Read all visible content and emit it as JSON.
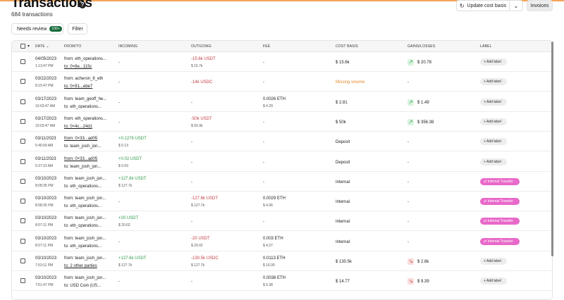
{
  "header": {
    "title": "Transactions",
    "subtitle": "684 transactions",
    "help_icon_glyph": "?",
    "update_cost_basis_label": "Update cost basis",
    "update_icon_glyph": "↻",
    "dropdown_glyph": "⌄",
    "invoices_label": "Invoices"
  },
  "filters": {
    "needs_review_label": "Needs review",
    "needs_review_count": "100+",
    "filter_label": "Filter"
  },
  "table": {
    "headers": {
      "date": "DATE",
      "sort_glyph": "⌄",
      "select_glyph": "▾",
      "from_to": "FROM/TO",
      "incoming": "INCOMING",
      "outgoing": "OUTGOING",
      "fee": "FEE",
      "cost_basis": "COST BASIS",
      "gains_losses": "GAINS/LOSSES",
      "label": "LABEL"
    },
    "rows": [
      {
        "date": "04/05/2023",
        "time": "1:13:47 PM",
        "from": "from: eth_operations...",
        "to": "to: 0×8e...115c",
        "to_link": true,
        "in_main": "-",
        "in_sub": "",
        "in_color": "",
        "out_main": "-15.6k USDT",
        "out_sub": "$ 15.7k",
        "out_color": "red",
        "fee_main": "-",
        "fee_sub": "",
        "cost": "$ 15.6k",
        "cost_color": "",
        "gain": "$ 20.78",
        "gain_dir": "up",
        "gain_glyph": "↗",
        "label": "+ Add label",
        "label_type": "add"
      },
      {
        "date": "03/22/2023",
        "time": "8:15:47 PM",
        "from": "from: acheron_8_eth",
        "to": "to: 0×91...ebe7",
        "to_link": true,
        "in_main": "-",
        "in_sub": "",
        "in_color": "",
        "out_main": "-14k USDC",
        "out_sub": "",
        "out_color": "red",
        "fee_main": "-",
        "fee_sub": "",
        "cost": "Missing volume",
        "cost_color": "orange",
        "gain": "-",
        "gain_dir": "",
        "gain_glyph": "",
        "label": "+ Add label",
        "label_type": "add"
      },
      {
        "date": "03/17/2023",
        "time": "10:03:47 AM",
        "from": "from: team_geoff_he...",
        "to": "to: eth_operations...",
        "to_link": false,
        "in_main": "-",
        "in_sub": "",
        "in_color": "",
        "out_main": "-",
        "out_sub": "",
        "out_color": "",
        "fee_main": "0.0026 ETH",
        "fee_sub": "$ 4.29",
        "cost": "$ 2.81",
        "cost_color": "",
        "gain": "$ 1.49",
        "gain_dir": "up",
        "gain_glyph": "↗",
        "label": "+ Add label",
        "label_type": "add"
      },
      {
        "date": "03/17/2023",
        "time": "10:03:47 AM",
        "from": "from: eth_operations...",
        "to": "to: 0×4c...24d1",
        "to_link": true,
        "in_main": "-",
        "in_sub": "",
        "in_color": "",
        "out_main": "-50k USDT",
        "out_sub": "$ 50.3k",
        "out_color": "red",
        "fee_main": "-",
        "fee_sub": "",
        "cost": "$ 50k",
        "cost_color": "",
        "gain": "$ 356.38",
        "gain_dir": "up",
        "gain_glyph": "↗",
        "label": "+ Add label",
        "label_type": "add"
      },
      {
        "date": "03/11/2023",
        "time": "5:46:59 AM",
        "from": "from: 0×33...ad05",
        "to": "to: team_josh_jon...",
        "to_link": false,
        "from_link": true,
        "in_main": "+0.1276 USDT",
        "in_sub": "$ 0.13",
        "in_color": "green",
        "out_main": "-",
        "out_sub": "",
        "out_color": "",
        "fee_main": "-",
        "fee_sub": "",
        "cost": "Deposit",
        "cost_color": "",
        "gain": "-",
        "gain_dir": "",
        "gain_glyph": "",
        "label": "+ Add label",
        "label_type": "add"
      },
      {
        "date": "03/11/2023",
        "time": "5:37:23 AM",
        "from": "from: 0×33...ad05",
        "to": "to: team_josh_jon...",
        "to_link": false,
        "from_link": true,
        "in_main": "+0.02 USDT",
        "in_sub": "$ 0.03",
        "in_color": "green",
        "out_main": "-",
        "out_sub": "",
        "out_color": "",
        "fee_main": "-",
        "fee_sub": "",
        "cost": "Deposit",
        "cost_color": "",
        "gain": "-",
        "gain_dir": "",
        "gain_glyph": "",
        "label": "+ Add label",
        "label_type": "add"
      },
      {
        "date": "03/10/2023",
        "time": "8:08:35 PM",
        "from": "from: team_josh_jon...",
        "to": "to: eth_operations...",
        "to_link": false,
        "in_main": "+127.6k USDT",
        "in_sub": "$ 127.7k",
        "in_color": "green",
        "out_main": "-",
        "out_sub": "",
        "out_color": "",
        "fee_main": "-",
        "fee_sub": "",
        "cost": "Internal",
        "cost_color": "",
        "gain": "-",
        "gain_dir": "",
        "gain_glyph": "",
        "label": "⇄ Internal Transfer",
        "label_type": "transfer"
      },
      {
        "date": "03/10/2023",
        "time": "8:08:35 PM",
        "from": "from: team_josh_jon...",
        "to": "to: eth_operations...",
        "to_link": false,
        "in_main": "-",
        "in_sub": "",
        "in_color": "",
        "out_main": "-127.6k USDT",
        "out_sub": "$ 127.7k",
        "out_color": "red",
        "fee_main": "0.0029 ETH",
        "fee_sub": "$ 4.06",
        "cost": "Internal",
        "cost_color": "",
        "gain": "-",
        "gain_dir": "",
        "gain_glyph": "",
        "label": "⇄ Internal Transfer",
        "label_type": "transfer"
      },
      {
        "date": "03/10/2023",
        "time": "8:07:11 PM",
        "from": "from: team_josh_jon...",
        "to": "to: eth_operations...",
        "to_link": false,
        "in_main": "+20 USDT",
        "in_sub": "$ 20.02",
        "in_color": "green",
        "out_main": "-",
        "out_sub": "",
        "out_color": "",
        "fee_main": "-",
        "fee_sub": "",
        "cost": "Internal",
        "cost_color": "",
        "gain": "-",
        "gain_dir": "",
        "gain_glyph": "",
        "label": "⇄ Internal Transfer",
        "label_type": "transfer"
      },
      {
        "date": "03/10/2023",
        "time": "8:07:11 PM",
        "from": "from: team_josh_jon...",
        "to": "to: eth_operations...",
        "to_link": false,
        "in_main": "-",
        "in_sub": "",
        "in_color": "",
        "out_main": "-20 USDT",
        "out_sub": "$ 20.02",
        "out_color": "red",
        "fee_main": "0.003 ETH",
        "fee_sub": "$ 4.27",
        "cost": "Internal",
        "cost_color": "",
        "gain": "-",
        "gain_dir": "",
        "gain_glyph": "",
        "label": "⇄ Internal Transfer",
        "label_type": "transfer"
      },
      {
        "date": "03/10/2023",
        "time": "7:53:11 PM",
        "from": "from: team_josh_jon...",
        "to": "to: 2 other parties",
        "to_link": true,
        "in_main": "+127.6k USDT",
        "in_sub": "$ 127.7k",
        "in_color": "green",
        "out_main": "-130.5k USDC",
        "out_sub": "$ 127.7k",
        "out_color": "red",
        "fee_main": "0.0113 ETH",
        "fee_sub": "$ 16.09",
        "cost": "$ 130.5k",
        "cost_color": "",
        "gain": "$ 2.8k",
        "gain_dir": "down",
        "gain_glyph": "↘",
        "label": "+ Add label",
        "label_type": "add"
      },
      {
        "date": "03/10/2023",
        "time": "7:51:47 PM",
        "from": "from: team_josh_jon...",
        "to": "to: USD Coin (US...",
        "to_link": false,
        "in_main": "-",
        "in_sub": "",
        "in_color": "",
        "out_main": "-",
        "out_sub": "",
        "out_color": "",
        "fee_main": "0.0038 ETH",
        "fee_sub": "$ 5.38",
        "cost": "$ 14.77",
        "cost_color": "",
        "gain": "$ 9.39",
        "gain_dir": "down",
        "gain_glyph": "↘",
        "label": "+ Add label",
        "label_type": "add"
      }
    ]
  },
  "colors": {
    "accent_orange": "#f3a65b",
    "positive_green": "#2f9a48",
    "negative_red": "#c23b42",
    "warning_orange": "#e2882f",
    "transfer_pink": "#e869c9",
    "badge_green": "#166b3c"
  }
}
